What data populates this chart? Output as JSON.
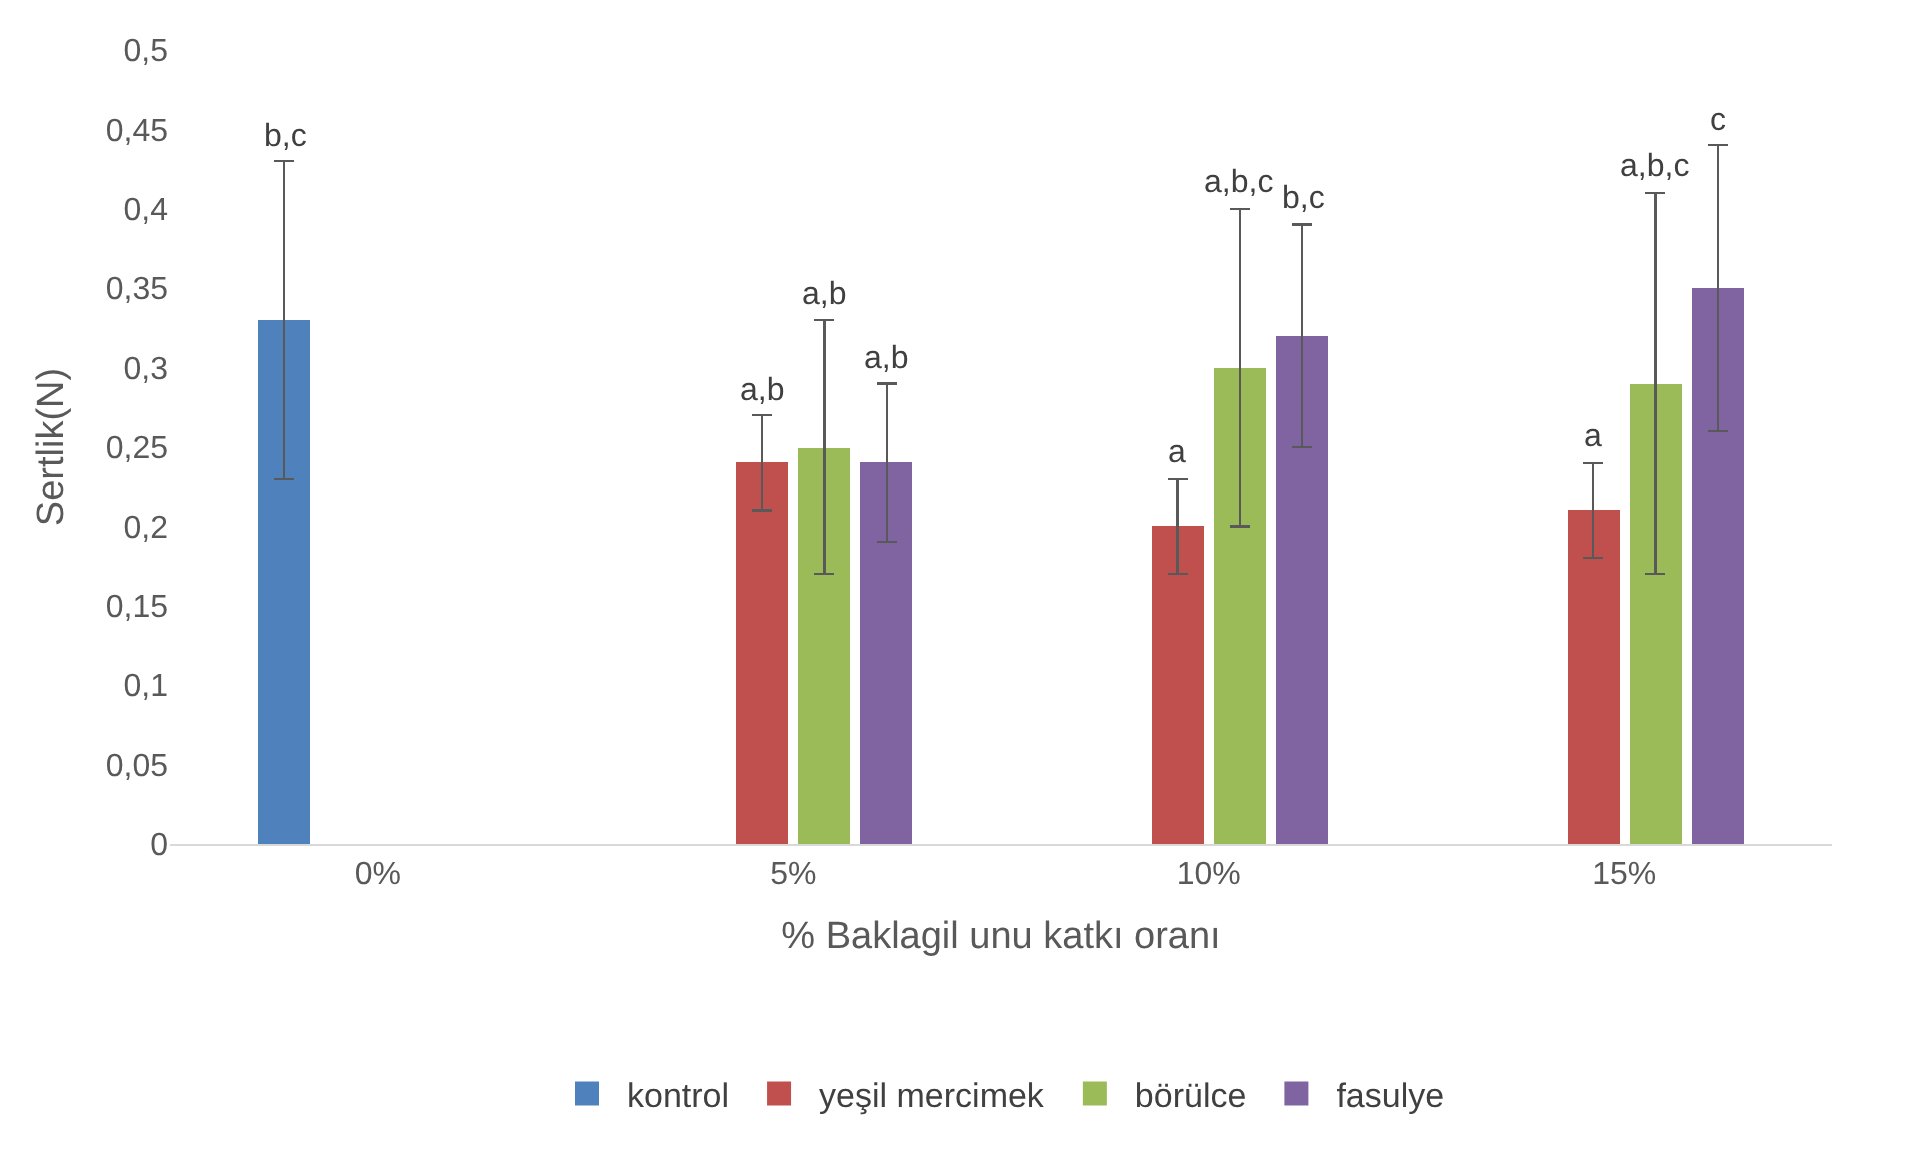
{
  "chart_data": {
    "type": "bar",
    "xlabel": "% Baklagil unu katkı oranı",
    "ylabel": "Sertlik(N)",
    "categories": [
      "0%",
      "5%",
      "10%",
      "15%"
    ],
    "series": [
      {
        "name": "kontrol",
        "color": "#4f81bd",
        "values": [
          0.33,
          null,
          null,
          null
        ],
        "errors": [
          [
            0.23,
            0.43
          ],
          null,
          null,
          null
        ]
      },
      {
        "name": "yeşil mercimek",
        "color": "#c0504d",
        "values": [
          null,
          0.24,
          0.2,
          0.21
        ],
        "errors": [
          null,
          [
            0.21,
            0.27
          ],
          [
            0.17,
            0.23
          ],
          [
            0.18,
            0.24
          ]
        ]
      },
      {
        "name": "börülce",
        "color": "#9bbb59",
        "values": [
          null,
          0.25,
          0.3,
          0.29
        ],
        "errors": [
          null,
          [
            0.17,
            0.33
          ],
          [
            0.2,
            0.4
          ],
          [
            0.17,
            0.41
          ]
        ]
      },
      {
        "name": "fasulye",
        "color": "#8064a2",
        "values": [
          null,
          0.24,
          0.32,
          0.35
        ],
        "errors": [
          null,
          [
            0.19,
            0.29
          ],
          [
            0.25,
            0.39
          ],
          [
            0.26,
            0.44
          ]
        ]
      }
    ],
    "ylim": [
      0,
      0.5
    ],
    "yticks": [
      0,
      {
        "value": 0.05,
        "label": "0,05"
      },
      {
        "value": 0.1,
        "label": "0,1"
      },
      {
        "value": 0.15,
        "label": "0,15"
      },
      {
        "value": 0.2,
        "label": "0,2"
      },
      {
        "value": 0.25,
        "label": "0,25"
      },
      {
        "value": 0.3,
        "label": "0,3"
      },
      {
        "value": 0.35,
        "label": "0,35"
      },
      {
        "value": 0.4,
        "label": "0,4"
      },
      {
        "value": 0.45,
        "label": "0,45"
      },
      {
        "value": 0.5,
        "label": "0,5"
      }
    ],
    "annotations": [
      "b,c",
      "a,b",
      "a,b",
      "a,b",
      "a",
      "a,b,c",
      "b,c",
      "a",
      "a,b,c",
      "c"
    ],
    "legend": "bottom"
  }
}
